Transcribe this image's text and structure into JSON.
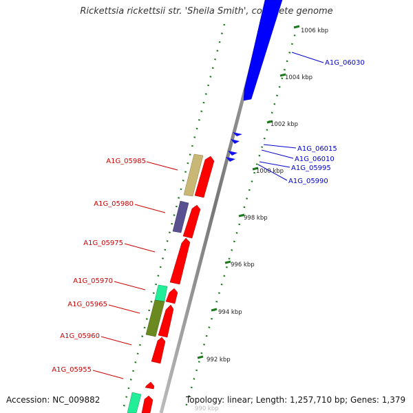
{
  "title": "Rickettsia rickettsii str. 'Sheila Smith', complete genome",
  "footer": {
    "accession": "Accession: NC_009882",
    "summary": "Topology: linear; Length: 1,257,710 bp; Genes: 1,379"
  },
  "colors": {
    "reverse_label": "#cc0000",
    "forward_label": "#0000cc",
    "forward_gene": "#0000ff",
    "reverse_gene": "#ff0000",
    "tick": "#1a7a1a",
    "backbone": "#888888"
  },
  "scale_labels": [
    "1006 kbp",
    "1004 kbp",
    "1002 kbp",
    "1000 kbp",
    "998 kbp",
    "996 kbp",
    "994 kbp",
    "992 kbp",
    "990 kbp"
  ],
  "genes_reverse": [
    "A1G_05985",
    "A1G_05980",
    "A1G_05975",
    "A1G_05970",
    "A1G_05965",
    "A1G_05960",
    "A1G_05955"
  ],
  "genes_forward": [
    "A1G_06030",
    "A1G_06015",
    "A1G_06010",
    "A1G_05995",
    "A1G_05990"
  ]
}
